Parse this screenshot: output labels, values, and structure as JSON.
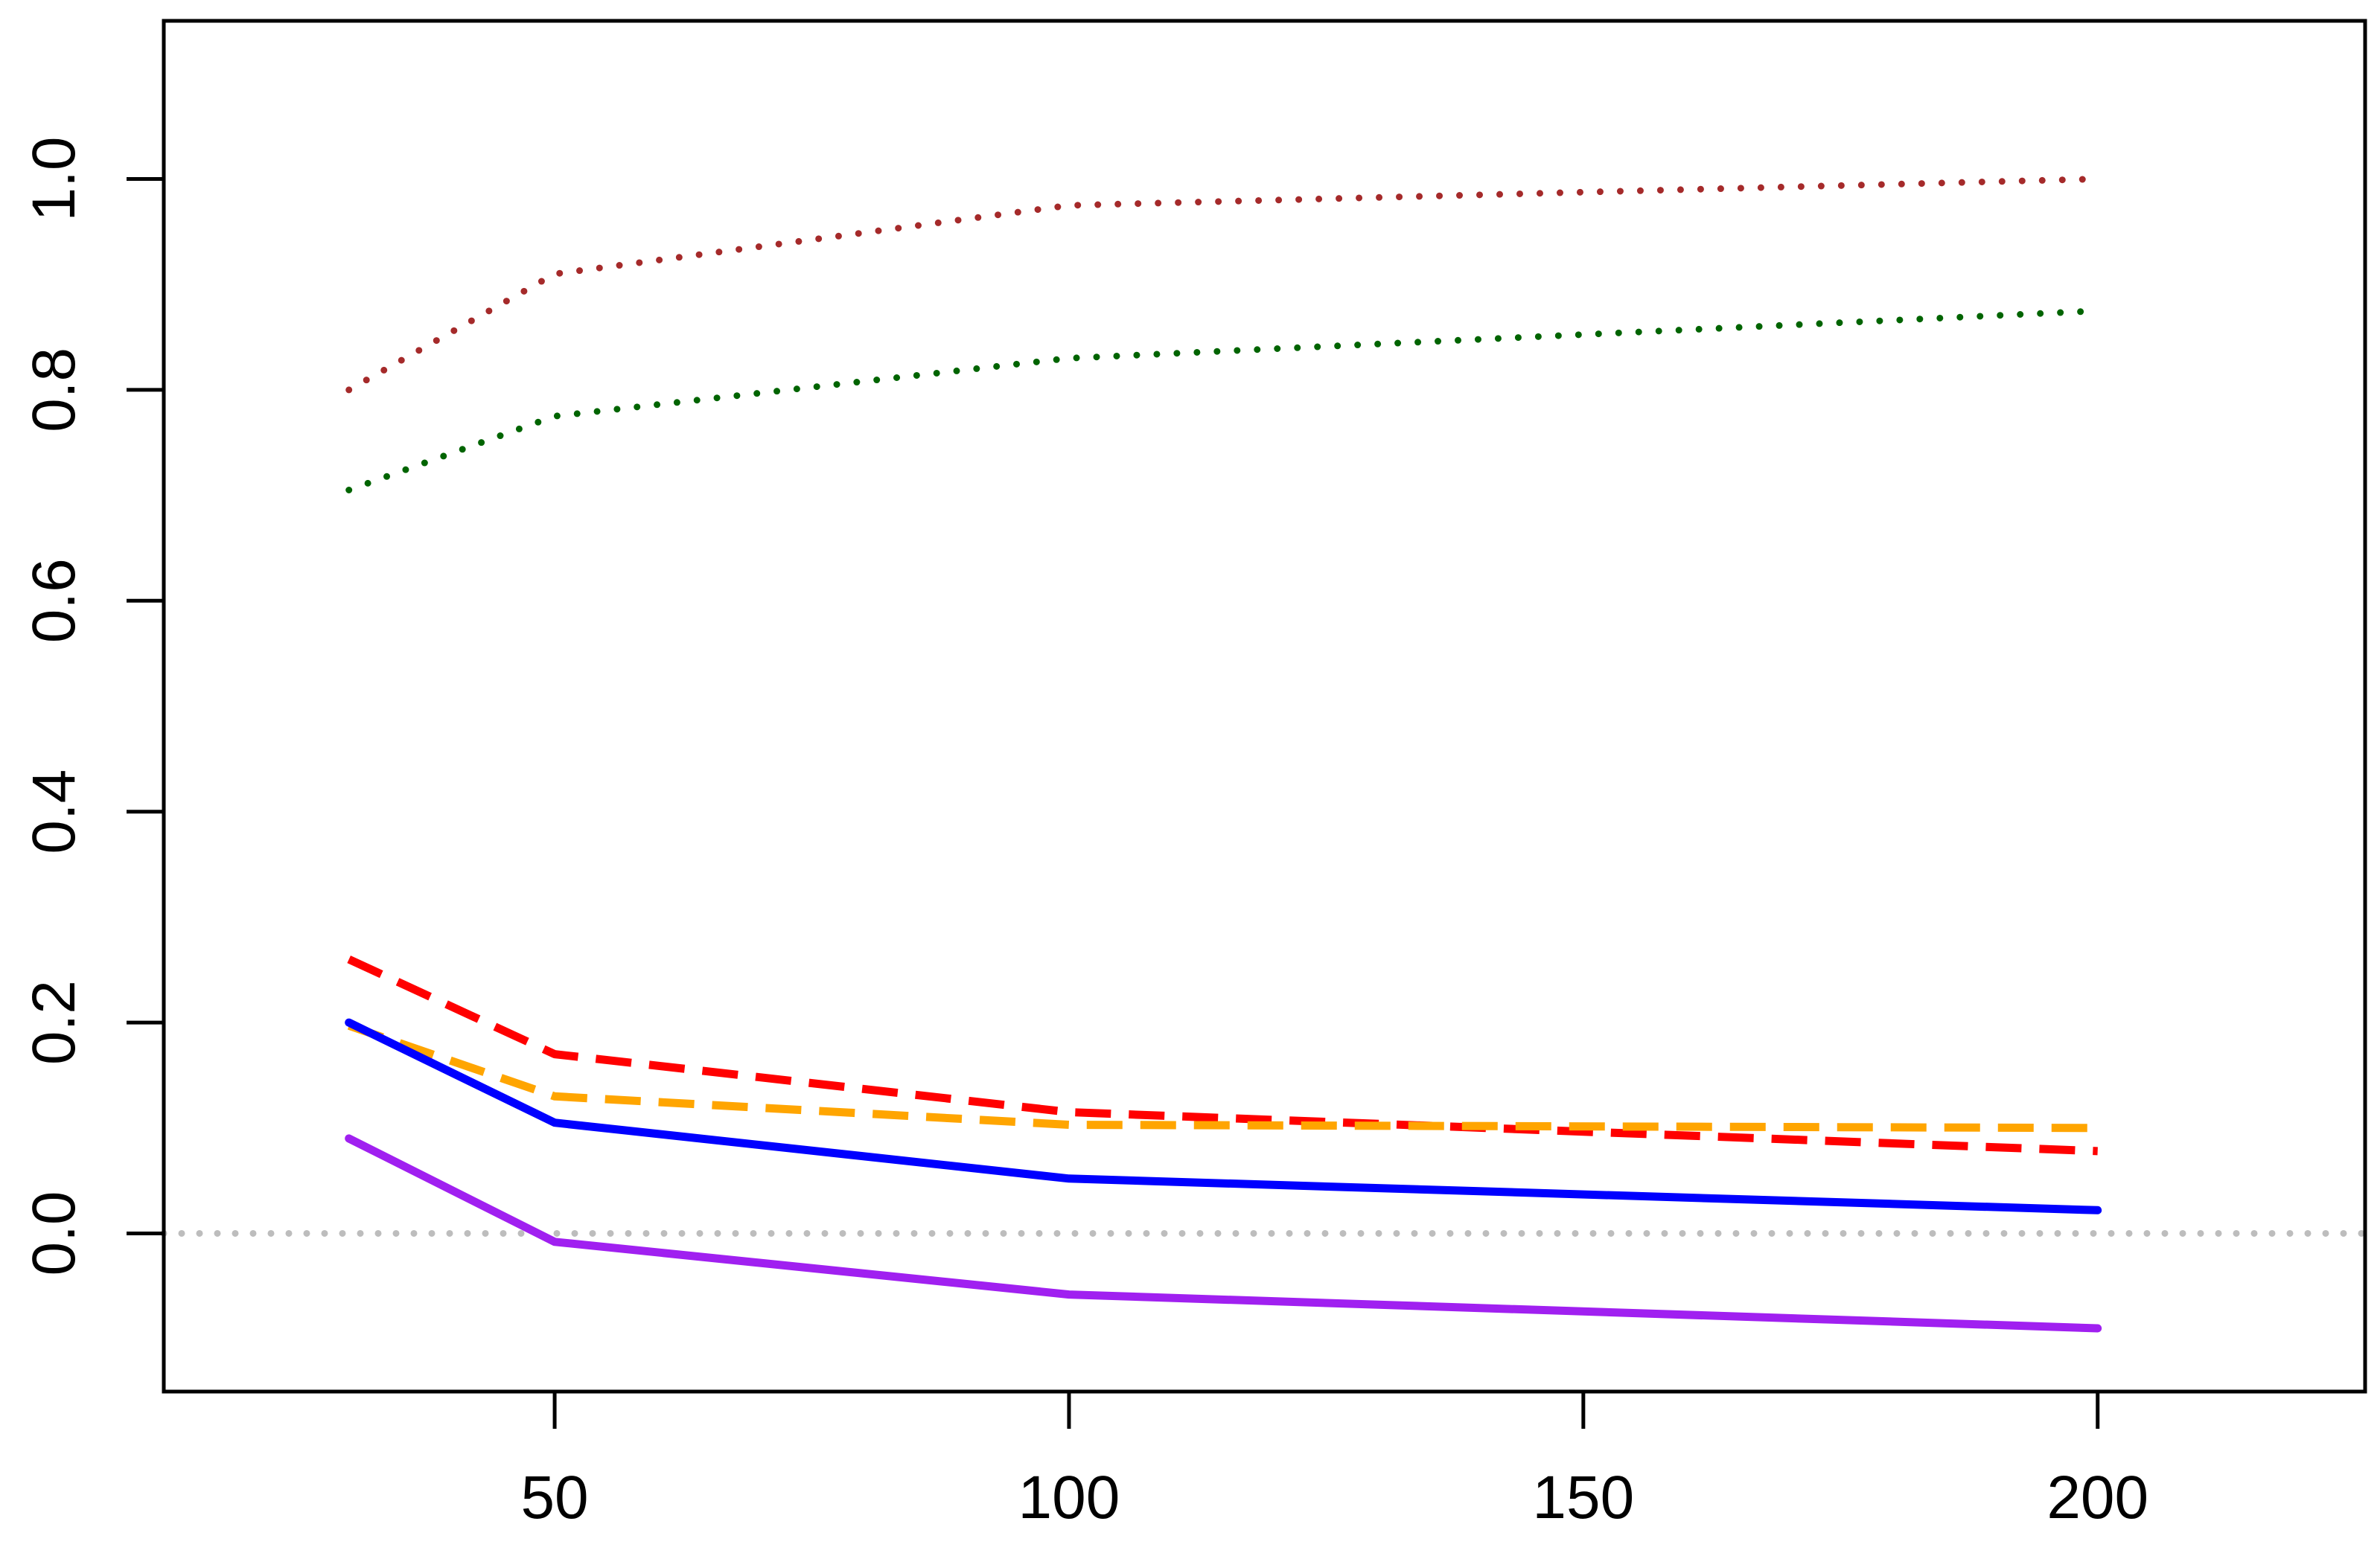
{
  "chart_data": {
    "type": "line",
    "title": "",
    "xlabel": "",
    "ylabel": "",
    "xlim": [
      12,
      226
    ],
    "ylim": [
      -0.15,
      1.15
    ],
    "x_ticks": [
      50,
      100,
      150,
      200
    ],
    "x_tick_labels": [
      "50",
      "100",
      "150",
      "200"
    ],
    "y_ticks": [
      0.0,
      0.2,
      0.4,
      0.6,
      0.8,
      1.0
    ],
    "y_tick_labels": [
      "0.0",
      "0.2",
      "0.4",
      "0.6",
      "0.8",
      "1.0"
    ],
    "grid": false,
    "legend": "none",
    "reference_line": {
      "y": 0.0,
      "color": "#bdbdbd",
      "style": "dotted"
    },
    "series": [
      {
        "color": "#a52a2a",
        "style": "dotted",
        "x": [
          30,
          50,
          100,
          200
        ],
        "y": [
          0.8,
          0.91,
          0.975,
          1.0
        ]
      },
      {
        "color": "#006400",
        "style": "dotted",
        "x": [
          30,
          50,
          100,
          200
        ],
        "y": [
          0.705,
          0.775,
          0.83,
          0.875
        ]
      },
      {
        "color": "#ff0000",
        "style": "dashed",
        "x": [
          30,
          50,
          100,
          200
        ],
        "y": [
          0.26,
          0.17,
          0.115,
          0.078
        ]
      },
      {
        "color": "#ffa500",
        "style": "dashed",
        "x": [
          30,
          50,
          100,
          200
        ],
        "y": [
          0.197,
          0.13,
          0.103,
          0.1
        ]
      },
      {
        "color": "#0000ff",
        "style": "solid",
        "x": [
          30,
          50,
          100,
          200
        ],
        "y": [
          0.2,
          0.105,
          0.052,
          0.022
        ]
      },
      {
        "color": "#a020f0",
        "style": "solid",
        "x": [
          30,
          50,
          100,
          200
        ],
        "y": [
          0.09,
          -0.008,
          -0.058,
          -0.09
        ]
      }
    ]
  }
}
